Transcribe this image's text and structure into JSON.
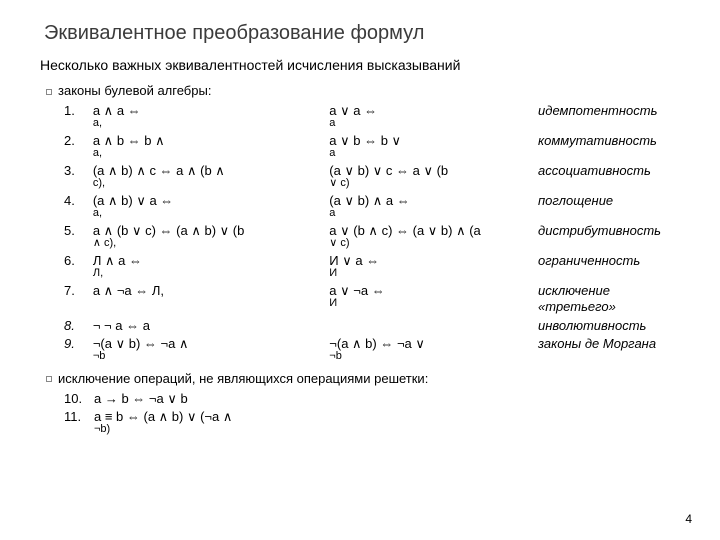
{
  "title": "Эквивалентное преобразование формул",
  "subtitle": "Несколько важных эквивалентностей исчисления высказываний",
  "section1": "законы булевой алгебры:",
  "section2": "исключение операций, не являющихся операциями решетки:",
  "pagenum": "4",
  "rows": [
    {
      "n": "1.",
      "a": "a ∧ a  ⇔",
      "a2": "a,",
      "b": "a ∨ a  ⇔",
      "b2": "a",
      "c": "идемпотентность"
    },
    {
      "n": "2.",
      "a": "a ∧ b  ⇔  b ∧",
      "a2": "a,",
      "b": "a ∨ b  ⇔  b ∨",
      "b2": "a",
      "c": "коммутативность"
    },
    {
      "n": "3.",
      "a": "(a ∧ b) ∧ c  ⇔  a ∧ (b ∧",
      "a2": "c),",
      "b": "(a ∨ b) ∨ c  ⇔  a ∨ (b",
      "b2": "∨ c)",
      "c": "ассоциативность"
    },
    {
      "n": "4.",
      "a": "(a ∧ b) ∨ a  ⇔",
      "a2": "a,",
      "b": "(a ∨ b) ∧ a  ⇔",
      "b2": "a",
      "c": "поглощение"
    },
    {
      "n": "5.",
      "a": "a ∧ (b ∨ c)  ⇔  (a ∧ b) ∨ (b",
      "a2": "∧ c),",
      "b": "a ∨ (b ∧ c)  ⇔  (a ∨ b) ∧ (a",
      "b2": "∨ c)",
      "c": "дистрибутивность"
    },
    {
      "n": "6.",
      "a": "Л ∧ a  ⇔",
      "a2": "Л,",
      "b": "И ∨ a  ⇔",
      "b2": "И",
      "c": "ограниченность"
    },
    {
      "n": "7.",
      "a": "a ∧ ¬a  ⇔  Л,",
      "a2": "",
      "b": "a ∨ ¬a  ⇔",
      "b2": "И",
      "c": "исключение «третьего»"
    },
    {
      "n": "8.",
      "a": "¬ ¬ a  ⇔  a",
      "a2": "",
      "b": "",
      "b2": "",
      "c": "инволютивность"
    },
    {
      "n": "9.",
      "a": "¬(a ∨ b)  ⇔  ¬a ∧",
      "a2": "¬b",
      "b": "¬(a ∧ b)  ⇔  ¬a ∨",
      "b2": "¬b",
      "c": "законы де Моргана"
    }
  ],
  "rows2": [
    {
      "n": "10.",
      "a": "a → b  ⇔  ¬a ∨ b"
    },
    {
      "n": "11.",
      "a": "a ≡ b  ⇔  (a ∧ b) ∨ (¬a ∧",
      "a2": "¬b)"
    }
  ]
}
